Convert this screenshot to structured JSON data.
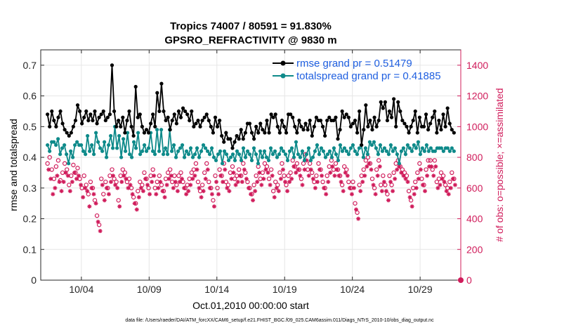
{
  "chart_data": {
    "type": "line",
    "title": "Tropics 74007 / 80591 = 91.830%",
    "subtitle": "GPSRO_REFRACTIVITY @ 9830 m",
    "xlabel": "Oct.01,2010 00:00:00 start",
    "ylabel_left": "rmse and totalspread",
    "ylabel_right": "# of obs: o=possible; ×=assimilated",
    "footnote": "data file: /Users/raeder/DAI/ATM_forcXX/CAM6_setup/f.e21.FHIST_BGC.f09_025.CAM6assim.011/Diags_NTrS_2010-10/obs_diag_output.nc",
    "xlim": [
      1,
      32
    ],
    "x_ticks": [
      4,
      9,
      14,
      19,
      24,
      29
    ],
    "x_tick_labels": [
      "10/04",
      "10/09",
      "10/14",
      "10/19",
      "10/24",
      "10/29"
    ],
    "ylim_left": [
      0,
      0.75
    ],
    "y_ticks_left": [
      "0",
      "0.1",
      "0.2",
      "0.3",
      "0.4",
      "0.5",
      "0.6",
      "0.7"
    ],
    "ylim_right": [
      0,
      1500
    ],
    "y_ticks_right": [
      "0",
      "200",
      "400",
      "600",
      "800",
      "1000",
      "1200",
      "1400"
    ],
    "grid": true,
    "legend_position": "top-right",
    "colors": {
      "rmse": "#000000",
      "spread": "#0e8a8a",
      "obs": "#d01c5b",
      "legend_text": "#1f5fe0",
      "grid": "#e6e6e6"
    },
    "series": [
      {
        "name": "rmse grand pr = 0.51479",
        "axis": "left",
        "values": [
          0.54,
          0.5,
          0.55,
          0.52,
          0.5,
          0.53,
          0.55,
          0.51,
          0.49,
          0.48,
          0.47,
          0.48,
          0.5,
          0.52,
          0.57,
          0.55,
          0.51,
          0.53,
          0.55,
          0.52,
          0.54,
          0.52,
          0.55,
          0.51,
          0.53,
          0.54,
          0.55,
          0.52,
          0.53,
          0.54,
          0.7,
          0.55,
          0.5,
          0.52,
          0.5,
          0.53,
          0.48,
          0.52,
          0.55,
          0.5,
          0.47,
          0.63,
          0.53,
          0.54,
          0.5,
          0.48,
          0.49,
          0.48,
          0.51,
          0.54,
          0.5,
          0.61,
          0.55,
          0.64,
          0.55,
          0.52,
          0.53,
          0.49,
          0.52,
          0.54,
          0.51,
          0.55,
          0.53,
          0.56,
          0.55,
          0.54,
          0.52,
          0.55,
          0.5,
          0.51,
          0.52,
          0.5,
          0.52,
          0.53,
          0.54,
          0.52,
          0.5,
          0.48,
          0.53,
          0.5,
          0.52,
          0.47,
          0.45,
          0.48,
          0.46,
          0.46,
          0.43,
          0.45,
          0.47,
          0.46,
          0.49,
          0.46,
          0.48,
          0.51,
          0.51,
          0.48,
          0.46,
          0.5,
          0.48,
          0.51,
          0.49,
          0.48,
          0.52,
          0.48,
          0.54,
          0.53,
          0.54,
          0.5,
          0.48,
          0.52,
          0.5,
          0.48,
          0.54,
          0.54,
          0.53,
          0.5,
          0.48,
          0.52,
          0.5,
          0.49,
          0.51,
          0.49,
          0.52,
          0.47,
          0.5,
          0.53,
          0.52,
          0.52,
          0.5,
          0.47,
          0.52,
          0.53,
          0.52,
          0.52,
          0.53,
          0.46,
          0.49,
          0.55,
          0.53,
          0.54,
          0.53,
          0.5,
          0.51,
          0.52,
          0.48,
          0.55,
          0.44,
          0.49,
          0.57,
          0.5,
          0.52,
          0.49,
          0.53,
          0.5,
          0.52,
          0.58,
          0.56,
          0.58,
          0.52,
          0.55,
          0.53,
          0.59,
          0.5,
          0.58,
          0.55,
          0.52,
          0.51,
          0.5,
          0.48,
          0.5,
          0.52,
          0.55,
          0.48,
          0.53,
          0.5,
          0.5,
          0.54,
          0.49,
          0.51,
          0.53,
          0.55,
          0.48,
          0.52,
          0.49,
          0.54,
          0.5,
          0.56,
          0.51,
          0.49,
          0.48
        ]
      },
      {
        "name": "totalspread grand pr = 0.41885",
        "axis": "left",
        "values": [
          0.44,
          0.42,
          0.45,
          0.45,
          0.44,
          0.46,
          0.41,
          0.43,
          0.44,
          0.41,
          0.38,
          0.42,
          0.4,
          0.44,
          0.45,
          0.44,
          0.44,
          0.42,
          0.41,
          0.47,
          0.42,
          0.44,
          0.41,
          0.48,
          0.45,
          0.43,
          0.42,
          0.45,
          0.4,
          0.44,
          0.47,
          0.43,
          0.5,
          0.43,
          0.47,
          0.4,
          0.46,
          0.42,
          0.48,
          0.41,
          0.4,
          0.45,
          0.43,
          0.48,
          0.41,
          0.42,
          0.44,
          0.42,
          0.43,
          0.48,
          0.42,
          0.41,
          0.49,
          0.42,
          0.49,
          0.41,
          0.43,
          0.41,
          0.49,
          0.42,
          0.44,
          0.4,
          0.42,
          0.43,
          0.44,
          0.4,
          0.42,
          0.41,
          0.43,
          0.4,
          0.41,
          0.43,
          0.4,
          0.42,
          0.44,
          0.43,
          0.42,
          0.41,
          0.43,
          0.4,
          0.39,
          0.41,
          0.42,
          0.38,
          0.42,
          0.41,
          0.39,
          0.4,
          0.41,
          0.39,
          0.42,
          0.41,
          0.39,
          0.43,
          0.4,
          0.42,
          0.41,
          0.39,
          0.43,
          0.41,
          0.38,
          0.42,
          0.4,
          0.42,
          0.4,
          0.39,
          0.43,
          0.41,
          0.42,
          0.4,
          0.41,
          0.43,
          0.42,
          0.41,
          0.39,
          0.42,
          0.43,
          0.4,
          0.45,
          0.41,
          0.4,
          0.42,
          0.39,
          0.41,
          0.43,
          0.39,
          0.4,
          0.42,
          0.44,
          0.41,
          0.43,
          0.42,
          0.4,
          0.41,
          0.42,
          0.4,
          0.43,
          0.41,
          0.39,
          0.44,
          0.42,
          0.43,
          0.42,
          0.41,
          0.43,
          0.44,
          0.42,
          0.41,
          0.43,
          0.44,
          0.4,
          0.43,
          0.41,
          0.45,
          0.44,
          0.45,
          0.43,
          0.41,
          0.44,
          0.42,
          0.43,
          0.42,
          0.41,
          0.44,
          0.42,
          0.43,
          0.41,
          0.38,
          0.42,
          0.43,
          0.41,
          0.44,
          0.43,
          0.42,
          0.44,
          0.43,
          0.45,
          0.41,
          0.43,
          0.42,
          0.44,
          0.42,
          0.43,
          0.42,
          0.42,
          0.43,
          0.43,
          0.43,
          0.42,
          0.43,
          0.43,
          0.42,
          0.43,
          0.42
        ]
      },
      {
        "name": "possible obs",
        "axis": "right",
        "marker": "circle",
        "values": [
          760,
          800,
          720,
          660,
          740,
          780,
          650,
          700,
          760,
          720,
          620,
          680,
          750,
          700,
          730,
          660,
          600,
          680,
          620,
          560,
          640,
          600,
          520,
          420,
          360,
          660,
          560,
          640,
          600,
          680,
          720,
          660,
          640,
          520,
          680,
          720,
          700,
          640,
          660,
          600,
          540,
          500,
          580,
          640,
          620,
          700,
          660,
          600,
          680,
          720,
          600,
          640,
          680,
          620,
          580,
          660,
          700,
          720,
          640,
          680,
          620,
          680,
          700,
          640,
          600,
          620,
          660,
          700,
          720,
          760,
          640,
          580,
          620,
          700,
          760,
          640,
          600,
          520,
          680,
          600,
          720,
          680,
          760,
          640,
          620,
          700,
          740,
          660,
          680,
          720,
          680,
          760,
          700,
          640,
          600,
          560,
          620,
          680,
          740,
          660,
          700,
          760,
          740,
          660,
          720,
          580,
          640,
          620,
          700,
          760,
          680,
          620,
          680,
          700,
          780,
          740,
          760,
          720,
          660,
          760,
          820,
          720,
          760,
          700,
          640,
          680,
          760,
          720,
          640,
          600,
          680,
          740,
          780,
          720,
          760,
          720,
          680,
          620,
          740,
          720,
          640,
          600,
          640,
          500,
          440,
          620,
          680,
          720,
          780,
          800,
          760,
          660,
          600,
          720,
          780,
          620,
          680,
          620,
          560,
          680,
          620,
          700,
          760,
          780,
          740,
          720,
          700,
          680,
          580,
          520,
          600,
          640,
          700,
          760,
          660,
          620,
          720,
          780,
          780,
          720,
          780,
          640,
          660,
          700,
          680,
          620,
          600,
          640,
          700,
          660
        ]
      },
      {
        "name": "assimilated obs",
        "axis": "right",
        "marker": "asterisk",
        "values": [
          720,
          660,
          560,
          600,
          680,
          640,
          580,
          640,
          700,
          680,
          580,
          640,
          700,
          660,
          680,
          620,
          540,
          600,
          580,
          480,
          600,
          560,
          500,
          380,
          320,
          620,
          520,
          600,
          560,
          640,
          680,
          620,
          600,
          480,
          640,
          680,
          660,
          600,
          620,
          560,
          500,
          460,
          540,
          600,
          580,
          660,
          620,
          560,
          640,
          680,
          560,
          600,
          640,
          580,
          540,
          620,
          660,
          680,
          600,
          640,
          580,
          640,
          660,
          600,
          560,
          580,
          620,
          660,
          680,
          720,
          600,
          540,
          580,
          660,
          720,
          600,
          560,
          480,
          640,
          560,
          680,
          640,
          720,
          600,
          580,
          660,
          700,
          620,
          640,
          680,
          640,
          720,
          660,
          600,
          560,
          520,
          580,
          640,
          700,
          620,
          660,
          720,
          700,
          620,
          680,
          540,
          600,
          580,
          660,
          720,
          640,
          580,
          640,
          660,
          740,
          700,
          720,
          680,
          620,
          720,
          780,
          680,
          720,
          660,
          600,
          640,
          720,
          680,
          600,
          560,
          640,
          700,
          740,
          680,
          720,
          680,
          640,
          580,
          700,
          680,
          600,
          560,
          600,
          460,
          400,
          580,
          640,
          680,
          740,
          760,
          720,
          620,
          560,
          680,
          740,
          580,
          640,
          580,
          520,
          640,
          580,
          660,
          720,
          740,
          700,
          680,
          660,
          640,
          540,
          480,
          560,
          600,
          660,
          720,
          620,
          580,
          680,
          740,
          740,
          680,
          740,
          600,
          620,
          660,
          640,
          580,
          560,
          600,
          660,
          620
        ]
      }
    ]
  }
}
